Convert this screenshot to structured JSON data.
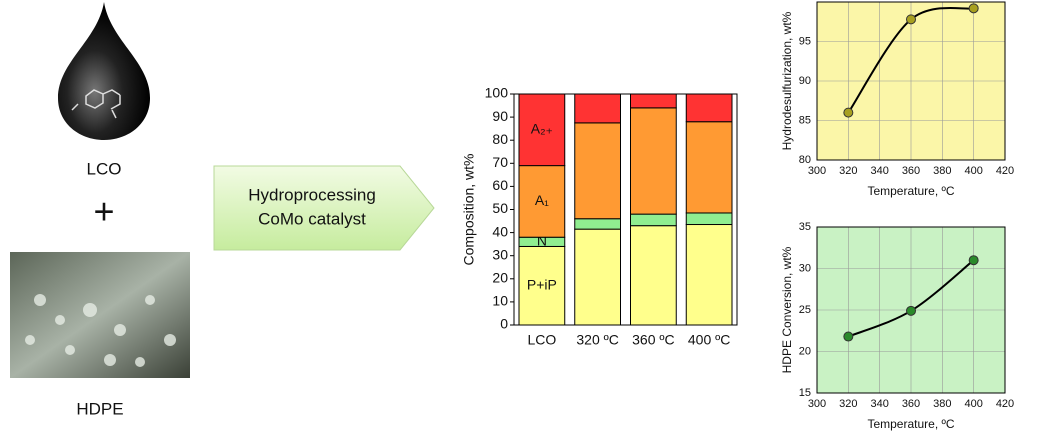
{
  "labels": {
    "lco": "LCO",
    "plus": "+",
    "hdpe": "HDPE",
    "process_line1": "Hydroprocessing",
    "process_line2": "CoMo catalyst"
  },
  "chart_data": [
    {
      "type": "stacked-bar",
      "y_label": "Composition, wt%",
      "categories": [
        "LCO",
        "320 ºC",
        "360 ºC",
        "400 ºC"
      ],
      "series": [
        {
          "name": "P+iP",
          "color": "#ffff8c",
          "values": [
            34,
            41.5,
            43,
            43.5
          ]
        },
        {
          "name": "N",
          "color": "#90ee90",
          "values": [
            4,
            4.5,
            5,
            5
          ]
        },
        {
          "name": "A₁",
          "color": "#ff9a33",
          "values": [
            31,
            41.5,
            46,
            39.5
          ]
        },
        {
          "name": "A₂₊",
          "color": "#ff3333",
          "values": [
            31,
            12.5,
            6,
            12
          ]
        }
      ],
      "ylim": [
        0,
        100
      ],
      "yticks": [
        0,
        10,
        20,
        30,
        40,
        50,
        60,
        70,
        80,
        90,
        100
      ]
    },
    {
      "type": "scatter-line",
      "x_label": "Temperature, ºC",
      "y_label": "Hydrodesulfurization, wt%",
      "x": [
        320,
        360,
        400
      ],
      "values": [
        86,
        97.8,
        99.2
      ],
      "color": "#a8a020",
      "background": "#fbf6a8",
      "xlim": [
        300,
        420
      ],
      "xticks": [
        300,
        320,
        340,
        360,
        380,
        400,
        420
      ],
      "ylim": [
        80,
        100
      ],
      "yticks": [
        80,
        85,
        90,
        95
      ],
      "grid": true
    },
    {
      "type": "scatter-line",
      "x_label": "Temperature, ºC",
      "y_label": "HDPE Conversion, wt%",
      "x": [
        320,
        360,
        400
      ],
      "values": [
        21.8,
        24.9,
        31
      ],
      "color": "#2a8a2a",
      "background": "#c9f2c4",
      "xlim": [
        300,
        420
      ],
      "xticks": [
        300,
        320,
        340,
        360,
        380,
        400,
        420
      ],
      "ylim": [
        15,
        35
      ],
      "yticks": [
        15,
        20,
        25,
        30,
        35
      ],
      "grid": true
    }
  ]
}
